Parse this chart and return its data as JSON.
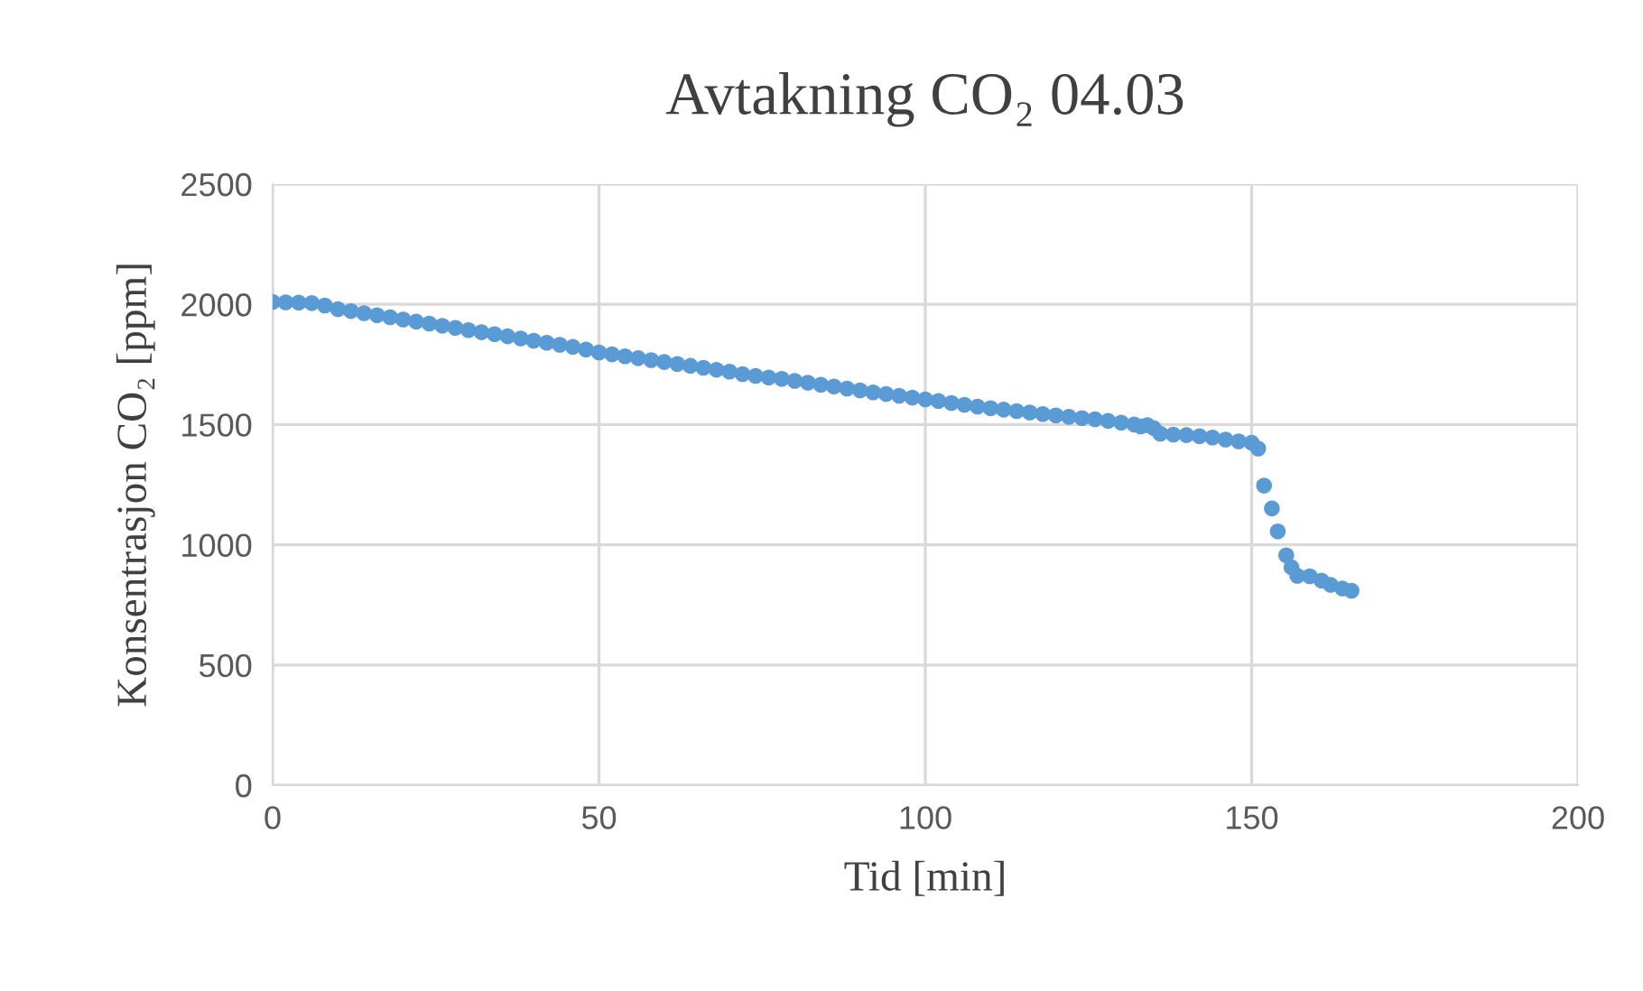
{
  "chart_data": {
    "type": "scatter",
    "title": "Avtakning CO₂ 04.03",
    "xlabel": "Tid [min]",
    "ylabel": "Konsentrasjon CO₂ [ppm]",
    "x": [
      0,
      2,
      4,
      6,
      8,
      10,
      12,
      14,
      16,
      18,
      20,
      22,
      24,
      26,
      28,
      30,
      32,
      34,
      36,
      38,
      40,
      42,
      44,
      46,
      48,
      50,
      52,
      54,
      56,
      58,
      60,
      62,
      64,
      66,
      68,
      70,
      72,
      74,
      76,
      78,
      80,
      82,
      84,
      86,
      88,
      90,
      92,
      94,
      96,
      98,
      100,
      102,
      104,
      106,
      108,
      110,
      112,
      114,
      116,
      118,
      120,
      122,
      124,
      126,
      128,
      130,
      132,
      133,
      134,
      135,
      136,
      138,
      140,
      142,
      144,
      146,
      148,
      150,
      151,
      151.9,
      153.1,
      154.0,
      155.3,
      156.1,
      157.0,
      158.9,
      160.7,
      162.1,
      163.9,
      165.3
    ],
    "series": [
      {
        "color": "#5b9bd5",
        "values": [
          2010,
          2008,
          2007,
          2005,
          1995,
          1980,
          1972,
          1963,
          1955,
          1946,
          1937,
          1928,
          1920,
          1911,
          1902,
          1893,
          1884,
          1876,
          1867,
          1858,
          1849,
          1840,
          1832,
          1823,
          1812,
          1800,
          1792,
          1784,
          1776,
          1768,
          1760,
          1752,
          1744,
          1736,
          1728,
          1720,
          1710,
          1702,
          1696,
          1690,
          1682,
          1674,
          1666,
          1658,
          1650,
          1642,
          1634,
          1627,
          1620,
          1612,
          1605,
          1598,
          1590,
          1582,
          1575,
          1568,
          1562,
          1556,
          1550,
          1544,
          1538,
          1532,
          1527,
          1522,
          1515,
          1508,
          1500,
          1492,
          1498,
          1485,
          1462,
          1458,
          1456,
          1452,
          1446,
          1438,
          1430,
          1424,
          1400,
          1246,
          1151,
          1056,
          956,
          906,
          871,
          869,
          851,
          833,
          818,
          809
        ]
      }
    ],
    "xlim": [
      0,
      200
    ],
    "xticks": [
      0,
      50,
      100,
      150,
      200
    ],
    "ylim": [
      0,
      2500
    ],
    "yticks": [
      0,
      500,
      1000,
      1500,
      2000,
      2500
    ],
    "grid": true,
    "marker": "circle"
  }
}
